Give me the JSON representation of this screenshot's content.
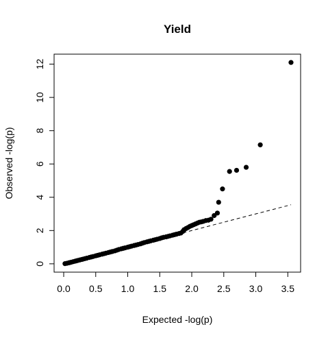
{
  "chart_data": {
    "type": "scatter",
    "title": "Yield",
    "xlabel": "Expected -log(p)",
    "ylabel": "Observed -log(p)",
    "xlim": [
      -0.15,
      3.7
    ],
    "ylim": [
      -0.5,
      12.6
    ],
    "x_ticks": [
      0.0,
      0.5,
      1.0,
      1.5,
      2.0,
      2.5,
      3.0,
      3.5
    ],
    "x_tick_labels": [
      "0.0",
      "0.5",
      "1.0",
      "1.5",
      "2.0",
      "2.5",
      "3.0",
      "3.5"
    ],
    "y_ticks": [
      0,
      2,
      4,
      6,
      8,
      10,
      12
    ],
    "y_tick_labels": [
      "0",
      "2",
      "4",
      "6",
      "8",
      "10",
      "12"
    ],
    "grid": false,
    "legend": "none",
    "reference_line": {
      "from": [
        0,
        0
      ],
      "to": [
        3.55,
        3.55
      ],
      "style": "dashed"
    },
    "point_color": "#000000",
    "points": [
      [
        0.02,
        0.01
      ],
      [
        0.05,
        0.03
      ],
      [
        0.08,
        0.06
      ],
      [
        0.1,
        0.08
      ],
      [
        0.12,
        0.1
      ],
      [
        0.15,
        0.13
      ],
      [
        0.18,
        0.16
      ],
      [
        0.2,
        0.18
      ],
      [
        0.22,
        0.2
      ],
      [
        0.25,
        0.23
      ],
      [
        0.28,
        0.26
      ],
      [
        0.3,
        0.28
      ],
      [
        0.33,
        0.31
      ],
      [
        0.36,
        0.34
      ],
      [
        0.4,
        0.38
      ],
      [
        0.43,
        0.41
      ],
      [
        0.46,
        0.44
      ],
      [
        0.5,
        0.48
      ],
      [
        0.53,
        0.51
      ],
      [
        0.56,
        0.54
      ],
      [
        0.6,
        0.58
      ],
      [
        0.63,
        0.61
      ],
      [
        0.66,
        0.64
      ],
      [
        0.7,
        0.68
      ],
      [
        0.73,
        0.71
      ],
      [
        0.76,
        0.74
      ],
      [
        0.8,
        0.78
      ],
      [
        0.83,
        0.82
      ],
      [
        0.86,
        0.86
      ],
      [
        0.9,
        0.9
      ],
      [
        0.93,
        0.93
      ],
      [
        0.96,
        0.96
      ],
      [
        1.0,
        1.0
      ],
      [
        1.03,
        1.03
      ],
      [
        1.06,
        1.06
      ],
      [
        1.1,
        1.1
      ],
      [
        1.13,
        1.13
      ],
      [
        1.16,
        1.16
      ],
      [
        1.2,
        1.2
      ],
      [
        1.23,
        1.24
      ],
      [
        1.26,
        1.28
      ],
      [
        1.3,
        1.32
      ],
      [
        1.33,
        1.35
      ],
      [
        1.36,
        1.38
      ],
      [
        1.4,
        1.42
      ],
      [
        1.43,
        1.45
      ],
      [
        1.46,
        1.48
      ],
      [
        1.5,
        1.52
      ],
      [
        1.53,
        1.56
      ],
      [
        1.56,
        1.59
      ],
      [
        1.6,
        1.62
      ],
      [
        1.63,
        1.65
      ],
      [
        1.66,
        1.68
      ],
      [
        1.7,
        1.72
      ],
      [
        1.73,
        1.75
      ],
      [
        1.76,
        1.78
      ],
      [
        1.8,
        1.82
      ],
      [
        1.83,
        1.85
      ],
      [
        1.86,
        1.95
      ],
      [
        1.88,
        2.05
      ],
      [
        1.91,
        2.12
      ],
      [
        1.94,
        2.18
      ],
      [
        1.97,
        2.25
      ],
      [
        2.0,
        2.3
      ],
      [
        2.03,
        2.35
      ],
      [
        2.06,
        2.4
      ],
      [
        2.09,
        2.45
      ],
      [
        2.12,
        2.5
      ],
      [
        2.15,
        2.52
      ],
      [
        2.18,
        2.55
      ],
      [
        2.22,
        2.6
      ],
      [
        2.26,
        2.62
      ],
      [
        2.3,
        2.68
      ],
      [
        2.35,
        2.9
      ],
      [
        2.4,
        3.05
      ],
      [
        2.42,
        3.7
      ],
      [
        2.48,
        4.5
      ],
      [
        2.59,
        5.55
      ],
      [
        2.7,
        5.62
      ],
      [
        2.85,
        5.8
      ],
      [
        3.07,
        7.15
      ],
      [
        3.55,
        12.1
      ]
    ]
  }
}
